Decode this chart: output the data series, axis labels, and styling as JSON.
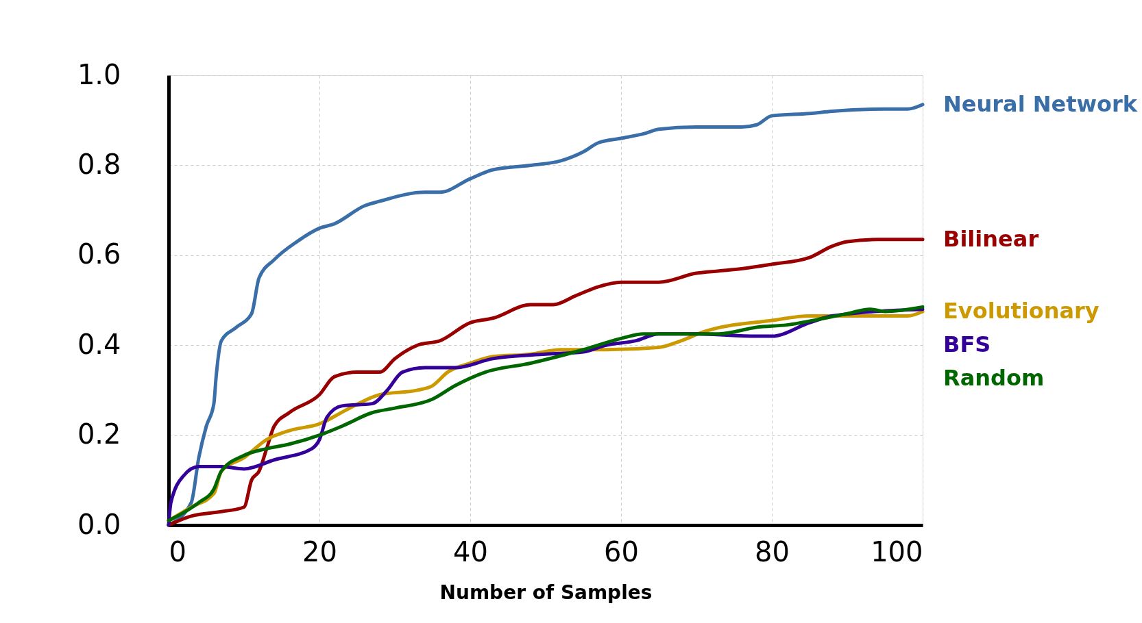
{
  "chart_data": {
    "type": "line",
    "xlabel": "Number of Samples",
    "xlim": [
      0,
      100
    ],
    "xticks": [
      0,
      20,
      40,
      60,
      80,
      100
    ],
    "ylim": [
      0,
      1.0
    ],
    "yticks": [
      {
        "value": 0,
        "label": "0.0"
      },
      {
        "value": 0.2,
        "label": "0.2"
      },
      {
        "value": 0.4,
        "label": "0.4"
      },
      {
        "value": 0.6,
        "label": "0.6"
      },
      {
        "value": 0.8,
        "label": "0.8"
      },
      {
        "value": 1.0,
        "label": "1.0"
      }
    ],
    "grid": true,
    "line_style": "solid",
    "series": [
      {
        "name": "Neural Network",
        "color": "#3a6ea8",
        "x": [
          0,
          3,
          4,
          5,
          6,
          6.3,
          7,
          9,
          11,
          12,
          14,
          17,
          20,
          22,
          26,
          28,
          34,
          36,
          40,
          43,
          48,
          52,
          55,
          57,
          60,
          63,
          65,
          70,
          76,
          78,
          80,
          85,
          88,
          95,
          98,
          100
        ],
        "values": [
          0,
          0.05,
          0.15,
          0.22,
          0.27,
          0.33,
          0.41,
          0.44,
          0.47,
          0.55,
          0.59,
          0.63,
          0.66,
          0.67,
          0.71,
          0.72,
          0.74,
          0.74,
          0.77,
          0.79,
          0.8,
          0.81,
          0.83,
          0.85,
          0.86,
          0.87,
          0.88,
          0.885,
          0.885,
          0.89,
          0.91,
          0.915,
          0.92,
          0.925,
          0.925,
          0.935
        ]
      },
      {
        "name": "Bilinear",
        "color": "#990000",
        "x": [
          0,
          3,
          7,
          10,
          11,
          12,
          13,
          14,
          16,
          20,
          22,
          25,
          28,
          30,
          33,
          36,
          40,
          43,
          48,
          51,
          54,
          57,
          60,
          65,
          70,
          73,
          76,
          80,
          85,
          88,
          90,
          94,
          100
        ],
        "values": [
          0,
          0.02,
          0.03,
          0.04,
          0.1,
          0.12,
          0.17,
          0.22,
          0.25,
          0.29,
          0.33,
          0.34,
          0.34,
          0.37,
          0.4,
          0.41,
          0.45,
          0.46,
          0.49,
          0.49,
          0.51,
          0.53,
          0.54,
          0.54,
          0.56,
          0.565,
          0.57,
          0.58,
          0.595,
          0.62,
          0.63,
          0.635,
          0.635
        ]
      },
      {
        "name": "Evolutionary",
        "color": "#cc9900",
        "x": [
          0,
          3,
          6,
          7,
          10,
          13,
          16,
          20,
          24,
          28,
          33,
          35,
          37,
          40,
          43,
          48,
          52,
          58,
          65,
          68,
          71,
          80,
          85,
          90,
          98,
          100
        ],
        "values": [
          0.01,
          0.04,
          0.07,
          0.12,
          0.15,
          0.19,
          0.21,
          0.225,
          0.26,
          0.29,
          0.3,
          0.31,
          0.34,
          0.36,
          0.375,
          0.38,
          0.39,
          0.39,
          0.395,
          0.41,
          0.43,
          0.455,
          0.465,
          0.465,
          0.465,
          0.475
        ]
      },
      {
        "name": "BFS",
        "color": "#330099",
        "x": [
          0,
          0.3,
          2,
          4,
          7,
          10,
          14,
          19,
          20,
          21,
          23,
          27,
          29,
          31,
          34,
          38,
          43,
          50,
          55,
          58,
          62,
          65,
          70,
          78,
          80,
          85,
          88,
          100
        ],
        "values": [
          0,
          0.05,
          0.11,
          0.13,
          0.13,
          0.125,
          0.145,
          0.17,
          0.19,
          0.24,
          0.265,
          0.27,
          0.3,
          0.34,
          0.35,
          0.35,
          0.37,
          0.38,
          0.385,
          0.4,
          0.41,
          0.425,
          0.425,
          0.42,
          0.42,
          0.45,
          0.465,
          0.48
        ]
      },
      {
        "name": "Random",
        "color": "#006600",
        "x": [
          0,
          4,
          6,
          7,
          10,
          13,
          16,
          20,
          23,
          27,
          30,
          35,
          38,
          42,
          48,
          55,
          60,
          63,
          68,
          73,
          78,
          82,
          87,
          90,
          93,
          95,
          100
        ],
        "values": [
          0.01,
          0.05,
          0.08,
          0.12,
          0.155,
          0.17,
          0.18,
          0.2,
          0.22,
          0.25,
          0.26,
          0.28,
          0.31,
          0.34,
          0.36,
          0.39,
          0.415,
          0.425,
          0.425,
          0.425,
          0.44,
          0.445,
          0.46,
          0.47,
          0.48,
          0.475,
          0.485
        ]
      }
    ]
  }
}
